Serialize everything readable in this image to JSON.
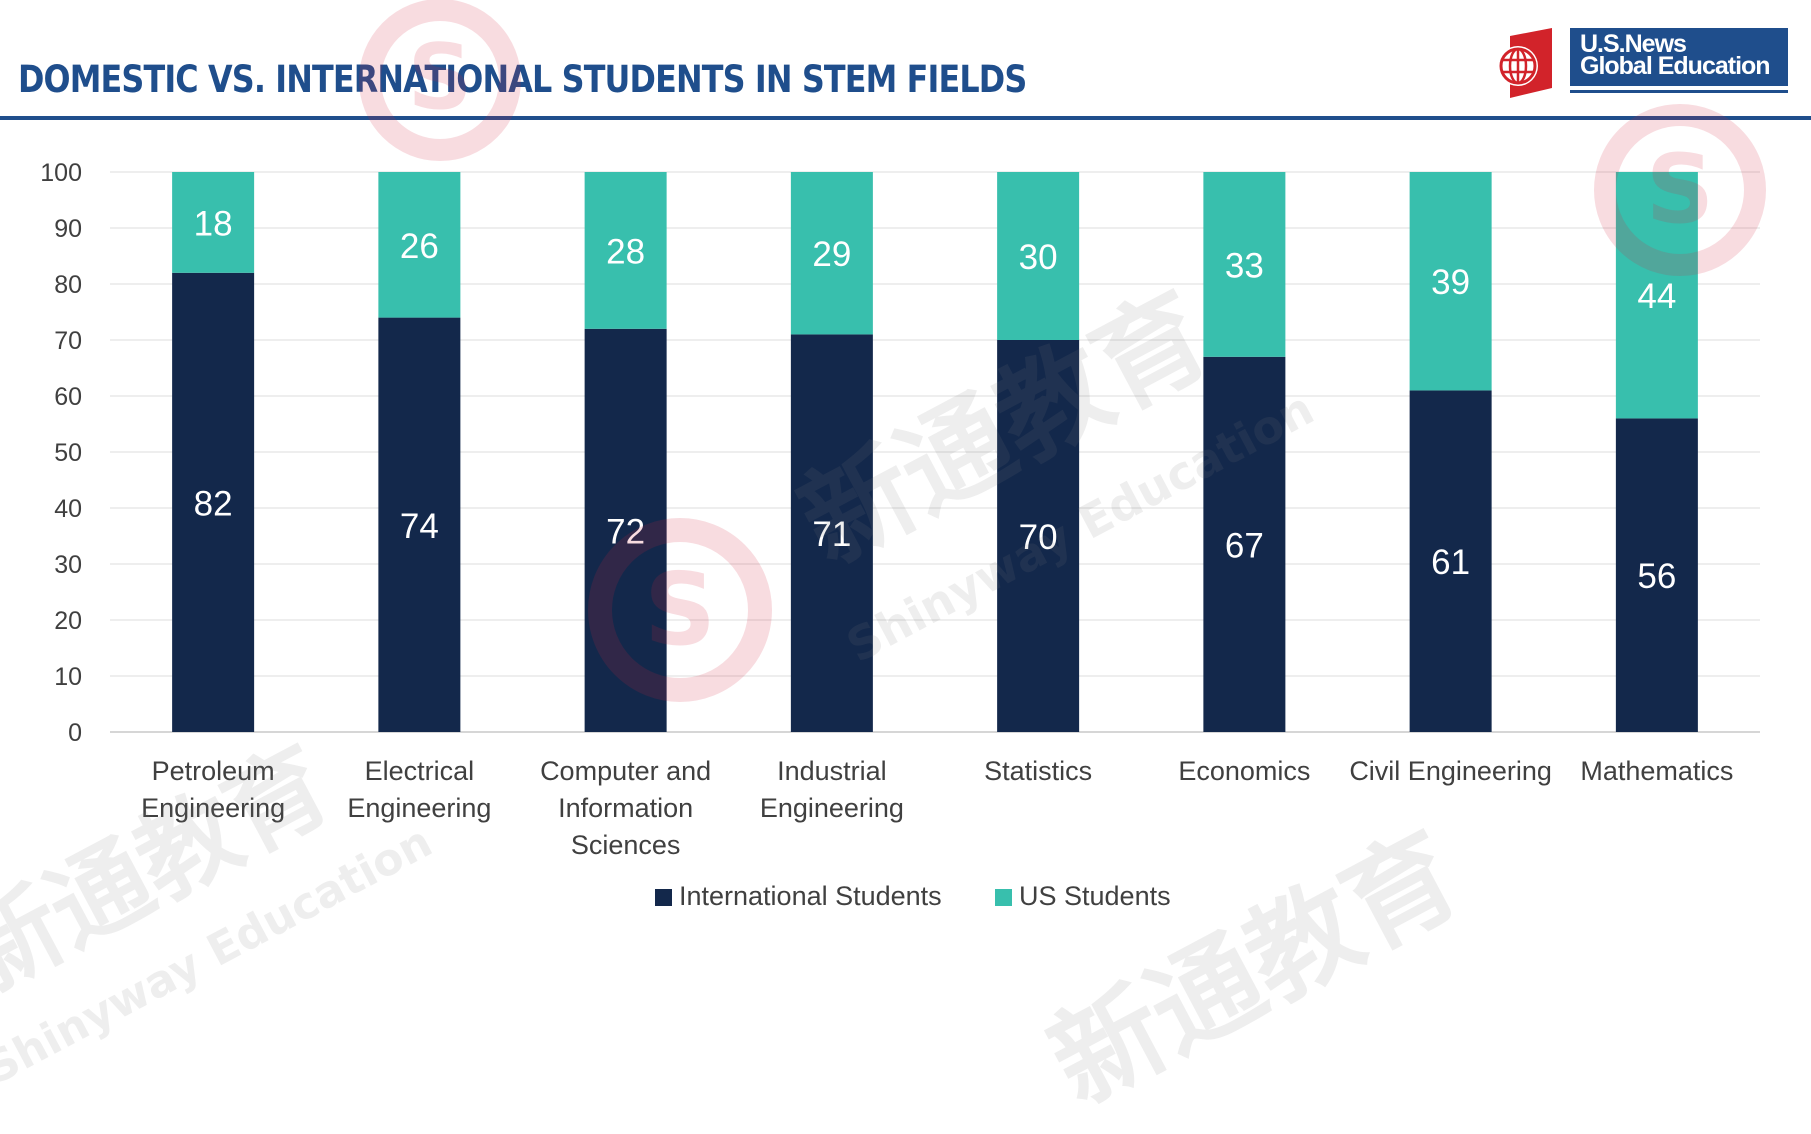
{
  "header": {
    "title": "DOMESTIC VS. INTERNATIONAL STUDENTS IN STEM FIELDS",
    "logo_line1": "U.S.News",
    "logo_line2": "Global Education",
    "accent_color": "#1f4e8c",
    "logo_red": "#d2232a"
  },
  "watermark": {
    "cn": "新通教育",
    "en": "Shinyway Education"
  },
  "chart_data": {
    "type": "bar",
    "stacked": true,
    "categories": [
      "Petroleum Engineering",
      "Electrical Engineering",
      "Computer and Information Sciences",
      "Industrial Engineering",
      "Statistics",
      "Economics",
      "Civil Engineering",
      "Mathematics"
    ],
    "series": [
      {
        "name": "International Students",
        "color": "#13284b",
        "values": [
          82,
          74,
          72,
          71,
          70,
          67,
          61,
          56
        ]
      },
      {
        "name": "US Students",
        "color": "#38bfad",
        "values": [
          18,
          26,
          28,
          29,
          30,
          33,
          39,
          44
        ]
      }
    ],
    "ylim": [
      0,
      100
    ],
    "yticks": [
      0,
      10,
      20,
      30,
      40,
      50,
      60,
      70,
      80,
      90,
      100
    ],
    "grid": true,
    "legend_position": "bottom",
    "data_labels": true
  }
}
